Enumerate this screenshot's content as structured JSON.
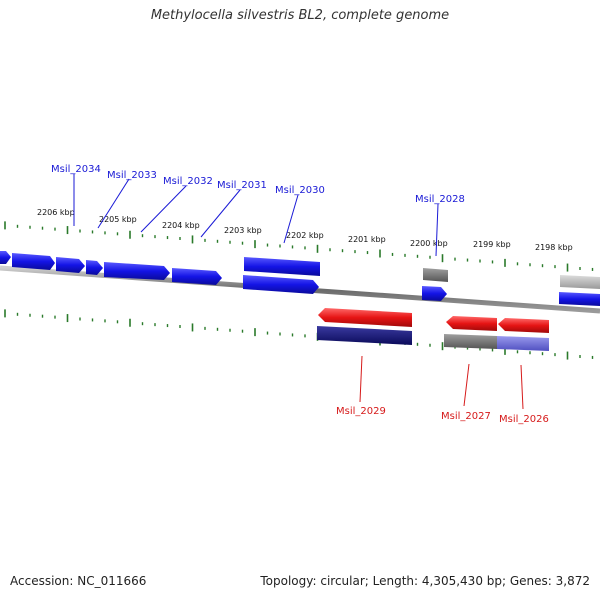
{
  "title": "Methylocella silvestris BL2, complete genome",
  "footer": {
    "accession": "Accession: NC_011666",
    "stats": "Topology: circular; Length: 4,305,430 bp; Genes: 3,872"
  },
  "kbp_labels": [
    "2206 kbp",
    "2205 kbp",
    "2204 kbp",
    "2203 kbp",
    "2202 kbp",
    "2201 kbp",
    "2200 kbp",
    "2199 kbp",
    "2198 kbp"
  ],
  "genes_top": [
    "Msil_2034",
    "Msil_2033",
    "Msil_2032",
    "Msil_2031",
    "Msil_2030",
    "Msil_2028"
  ],
  "genes_bottom": [
    "Msil_2029",
    "Msil_2027",
    "Msil_2026"
  ],
  "colors": {
    "forward": "#1414e6",
    "reverse": "#e61414",
    "dark_blue": "#14147a",
    "gray": "#777777",
    "light_gray": "#bbbbbb",
    "lavender": "#7070dd",
    "tick": "#2a7a2a",
    "label_top": "#1a1ad6",
    "label_bottom": "#d61a1a"
  }
}
